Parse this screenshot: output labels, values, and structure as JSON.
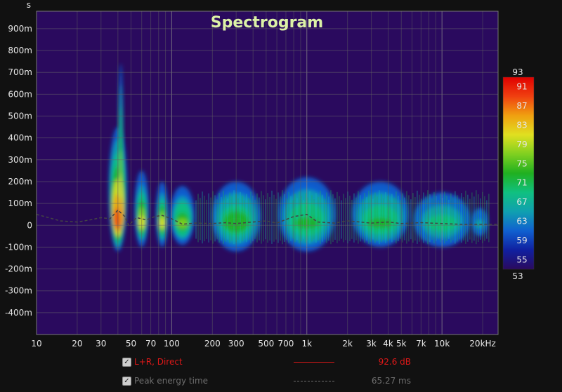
{
  "chart_data": {
    "type": "heatmap",
    "title": "Spectrogram",
    "y_unit_label": "s",
    "x_scale": "log",
    "x_range_hz": [
      10,
      26000
    ],
    "y_range_s": [
      -0.5,
      0.98
    ],
    "x_ticks": [
      {
        "value": 10,
        "label": "10"
      },
      {
        "value": 20,
        "label": "20"
      },
      {
        "value": 30,
        "label": "30"
      },
      {
        "value": 50,
        "label": "50"
      },
      {
        "value": 70,
        "label": "70"
      },
      {
        "value": 100,
        "label": "100"
      },
      {
        "value": 200,
        "label": "200"
      },
      {
        "value": 300,
        "label": "300"
      },
      {
        "value": 500,
        "label": "500"
      },
      {
        "value": 700,
        "label": "700"
      },
      {
        "value": 1000,
        "label": "1k"
      },
      {
        "value": 2000,
        "label": "2k"
      },
      {
        "value": 3000,
        "label": "3k"
      },
      {
        "value": 4000,
        "label": "4k"
      },
      {
        "value": 5000,
        "label": "5k"
      },
      {
        "value": 7000,
        "label": "7k"
      },
      {
        "value": 10000,
        "label": "10k"
      },
      {
        "value": 20000,
        "label": "20kHz"
      }
    ],
    "y_ticks": [
      {
        "value": 0.9,
        "label": "900m"
      },
      {
        "value": 0.8,
        "label": "800m"
      },
      {
        "value": 0.7,
        "label": "700m"
      },
      {
        "value": 0.6,
        "label": "600m"
      },
      {
        "value": 0.5,
        "label": "500m"
      },
      {
        "value": 0.4,
        "label": "400m"
      },
      {
        "value": 0.3,
        "label": "300m"
      },
      {
        "value": 0.2,
        "label": "200m"
      },
      {
        "value": 0.1,
        "label": "100m"
      },
      {
        "value": 0,
        "label": "0"
      },
      {
        "value": -0.1,
        "label": "-100m"
      },
      {
        "value": -0.2,
        "label": "-200m"
      },
      {
        "value": -0.3,
        "label": "-300m"
      },
      {
        "value": -0.4,
        "label": "-400m"
      }
    ],
    "colorbar": {
      "min": 53,
      "max": 93,
      "min_label": "53",
      "max_label": "93",
      "ticks": [
        {
          "value": 91,
          "label": "91"
        },
        {
          "value": 87,
          "label": "87"
        },
        {
          "value": 83,
          "label": "83"
        },
        {
          "value": 79,
          "label": "79"
        },
        {
          "value": 75,
          "label": "75"
        },
        {
          "value": 71,
          "label": "71"
        },
        {
          "value": 67,
          "label": "67"
        },
        {
          "value": 63,
          "label": "63"
        },
        {
          "value": 59,
          "label": "59"
        },
        {
          "value": 55,
          "label": "55"
        }
      ],
      "colors": [
        "#2a0a5e",
        "#1020a0",
        "#1060d0",
        "#10a0b0",
        "#10c080",
        "#20b020",
        "#80d020",
        "#e0e020",
        "#f0a010",
        "#f04010",
        "#e00000"
      ]
    },
    "background_color": "#2a0a5e",
    "grid": true,
    "energy_blobs": [
      {
        "freq_hz": 40,
        "width_oct": 0.45,
        "top_s": 0.45,
        "bottom_s": -0.12,
        "level_db": 90
      },
      {
        "freq_hz": 42,
        "width_oct": 0.12,
        "top_s": 0.74,
        "bottom_s": -0.02,
        "level_db": 86
      },
      {
        "freq_hz": 60,
        "width_oct": 0.35,
        "top_s": 0.25,
        "bottom_s": -0.1,
        "level_db": 82
      },
      {
        "freq_hz": 85,
        "width_oct": 0.3,
        "top_s": 0.2,
        "bottom_s": -0.1,
        "level_db": 80
      },
      {
        "freq_hz": 120,
        "width_oct": 0.6,
        "top_s": 0.18,
        "bottom_s": -0.09,
        "level_db": 76
      },
      {
        "freq_hz": 300,
        "width_oct": 1.2,
        "top_s": 0.2,
        "bottom_s": -0.12,
        "level_db": 74
      },
      {
        "freq_hz": 1000,
        "width_oct": 1.4,
        "top_s": 0.22,
        "bottom_s": -0.12,
        "level_db": 73
      },
      {
        "freq_hz": 3500,
        "width_oct": 1.4,
        "top_s": 0.2,
        "bottom_s": -0.1,
        "level_db": 72
      },
      {
        "freq_hz": 10000,
        "width_oct": 1.4,
        "top_s": 0.15,
        "bottom_s": -0.1,
        "level_db": 69
      },
      {
        "freq_hz": 19000,
        "width_oct": 0.4,
        "top_s": 0.08,
        "bottom_s": -0.05,
        "level_db": 64
      }
    ],
    "peak_energy_time_curve": [
      {
        "freq_hz": 10,
        "time_s": 0.05
      },
      {
        "freq_hz": 15,
        "time_s": 0.02
      },
      {
        "freq_hz": 20,
        "time_s": 0.015
      },
      {
        "freq_hz": 25,
        "time_s": 0.025
      },
      {
        "freq_hz": 30,
        "time_s": 0.035
      },
      {
        "freq_hz": 35,
        "time_s": 0.03
      },
      {
        "freq_hz": 40,
        "time_s": 0.07
      },
      {
        "freq_hz": 45,
        "time_s": 0.04
      },
      {
        "freq_hz": 48,
        "time_s": 0.0
      },
      {
        "freq_hz": 55,
        "time_s": 0.035
      },
      {
        "freq_hz": 65,
        "time_s": 0.025
      },
      {
        "freq_hz": 75,
        "time_s": 0.04
      },
      {
        "freq_hz": 85,
        "time_s": 0.045
      },
      {
        "freq_hz": 100,
        "time_s": 0.03
      },
      {
        "freq_hz": 120,
        "time_s": 0.005
      },
      {
        "freq_hz": 150,
        "time_s": 0.01
      },
      {
        "freq_hz": 200,
        "time_s": 0.008
      },
      {
        "freq_hz": 250,
        "time_s": 0.012
      },
      {
        "freq_hz": 300,
        "time_s": 0.008
      },
      {
        "freq_hz": 400,
        "time_s": 0.015
      },
      {
        "freq_hz": 500,
        "time_s": 0.02
      },
      {
        "freq_hz": 600,
        "time_s": 0.01
      },
      {
        "freq_hz": 800,
        "time_s": 0.04
      },
      {
        "freq_hz": 1000,
        "time_s": 0.05
      },
      {
        "freq_hz": 1200,
        "time_s": 0.015
      },
      {
        "freq_hz": 1600,
        "time_s": 0.01
      },
      {
        "freq_hz": 2000,
        "time_s": 0.02
      },
      {
        "freq_hz": 3000,
        "time_s": 0.01
      },
      {
        "freq_hz": 4000,
        "time_s": 0.015
      },
      {
        "freq_hz": 5000,
        "time_s": 0.008
      },
      {
        "freq_hz": 7000,
        "time_s": 0.012
      },
      {
        "freq_hz": 10000,
        "time_s": 0.008
      },
      {
        "freq_hz": 15000,
        "time_s": 0.004
      },
      {
        "freq_hz": 20000,
        "time_s": 0.005
      },
      {
        "freq_hz": 26000,
        "time_s": 0.004
      }
    ],
    "legend": [
      {
        "label": "L+R, Direct",
        "value": "92.6 dB",
        "color": "#e01818",
        "line_style": "solid",
        "checked": true
      },
      {
        "label": "Peak energy time",
        "value": "65.27 ms",
        "color": "#6e6e6e",
        "line_style": "dashed",
        "checked": true
      }
    ]
  }
}
